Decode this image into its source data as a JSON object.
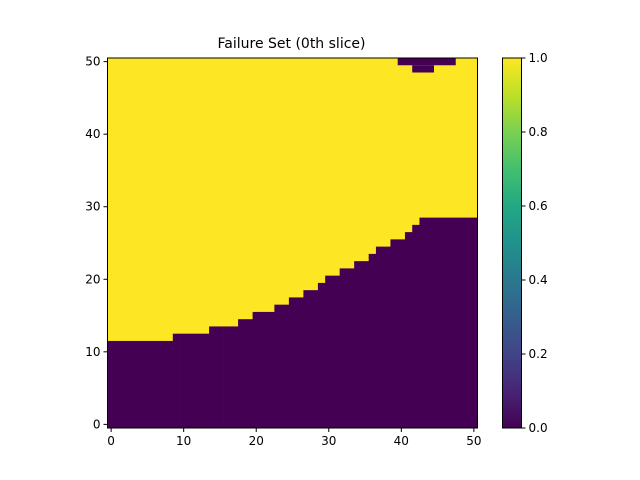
{
  "chart_data": {
    "type": "heatmap",
    "title": "Failure Set (0th slice)",
    "xlabel": "",
    "ylabel": "",
    "xlim": [
      0,
      51
    ],
    "ylim": [
      0,
      51
    ],
    "x_ticks": [
      "0",
      "10",
      "20",
      "30",
      "40",
      "50"
    ],
    "y_ticks": [
      "0",
      "10",
      "20",
      "30",
      "40",
      "50"
    ],
    "colormap": "viridis",
    "color_low": "#440154",
    "color_high": "#fde725",
    "colorbar_range": [
      0.0,
      1.0
    ],
    "colorbar_ticks": [
      "0.0",
      "0.2",
      "0.4",
      "0.6",
      "0.8",
      "1.0"
    ],
    "grid": false,
    "grid_size": [
      51,
      51
    ],
    "boundary_description": "For each column x, cells with y below the boundary value are 0 (dark), the rest are 1 (yellow)",
    "boundary_y_by_x": [
      12,
      12,
      12,
      12,
      12,
      12,
      12,
      12,
      12,
      13,
      13,
      13,
      13,
      13,
      14,
      14,
      14,
      14,
      15,
      15,
      16,
      16,
      16,
      17,
      17,
      18,
      18,
      19,
      19,
      20,
      21,
      21,
      22,
      22,
      23,
      23,
      24,
      25,
      25,
      26,
      26,
      27,
      28,
      29,
      29,
      29,
      29,
      29,
      29,
      29,
      29
    ],
    "top_zero_region": [
      {
        "x": [
          40,
          47
        ],
        "y": [
          50,
          50
        ],
        "value": 0
      },
      {
        "x": [
          42,
          44
        ],
        "y": [
          49,
          49
        ],
        "value": 0
      }
    ]
  }
}
